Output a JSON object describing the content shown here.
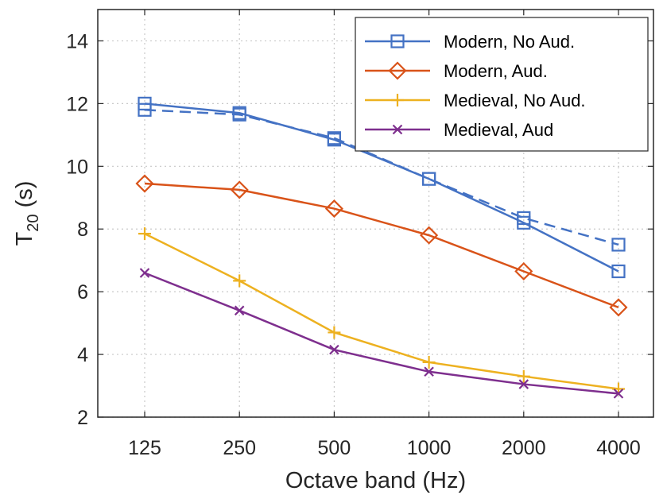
{
  "chart_data": {
    "type": "line",
    "xlabel": "Octave band (Hz)",
    "ylabel": "T",
    "ylabel_sub": "20",
    "ylabel_suffix": " (s)",
    "categories": [
      "125",
      "250",
      "500",
      "1000",
      "2000",
      "4000"
    ],
    "ylim": [
      2,
      15
    ],
    "yticks": [
      2,
      4,
      6,
      8,
      10,
      12,
      14
    ],
    "grid": true,
    "legend_position": "top-right",
    "series": [
      {
        "name": "Modern, No Aud.",
        "color": "#4472c4",
        "marker": "square",
        "values": [
          12.0,
          11.7,
          10.85,
          9.6,
          8.2,
          6.65
        ],
        "dashed_values": [
          11.8,
          11.65,
          10.9,
          9.6,
          8.35,
          7.5
        ]
      },
      {
        "name": "Modern, Aud.",
        "color": "#d95319",
        "marker": "diamond",
        "values": [
          9.45,
          9.25,
          8.65,
          7.8,
          6.65,
          5.5
        ]
      },
      {
        "name": "Medieval, No Aud.",
        "color": "#edb120",
        "marker": "plus",
        "values": [
          7.85,
          6.35,
          4.7,
          3.75,
          3.3,
          2.9
        ]
      },
      {
        "name": "Medieval, Aud",
        "color": "#7e2f8e",
        "marker": "x",
        "values": [
          6.6,
          5.4,
          4.15,
          3.45,
          3.05,
          2.75
        ]
      }
    ]
  }
}
